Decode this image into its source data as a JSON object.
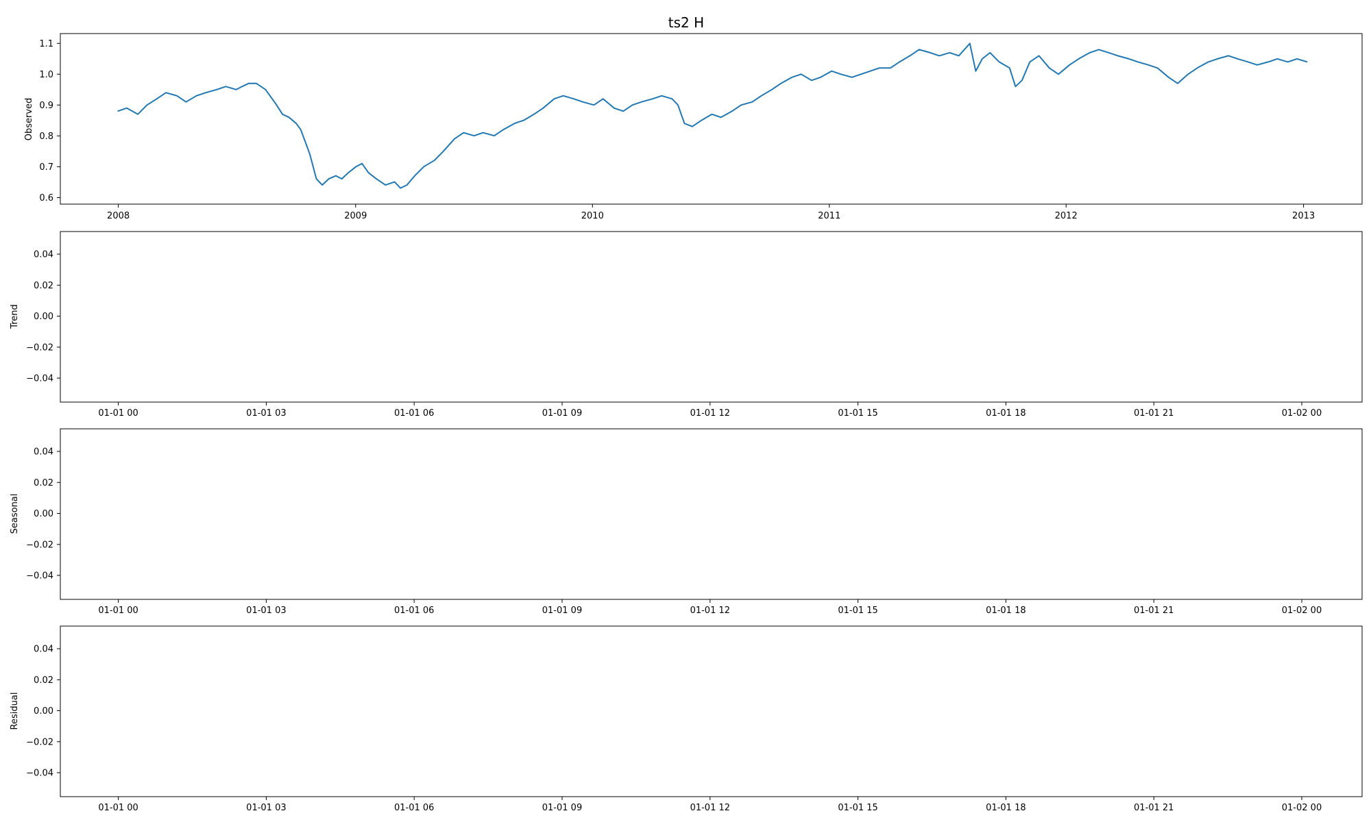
{
  "chart_data": [
    {
      "type": "line",
      "title": "ts2 H",
      "ylabel": "Observed",
      "xlabel": "",
      "grid": false,
      "color": "#1f77b4",
      "x_ticks": [
        "2008",
        "2009",
        "2010",
        "2011",
        "2012",
        "2013"
      ],
      "y_ticks": [
        "0.6",
        "0.7",
        "0.8",
        "0.9",
        "1.0",
        "1.1"
      ],
      "xlim": [
        "2007-10-05",
        "2013-03-25"
      ],
      "ylim": [
        0.578,
        1.132
      ],
      "series": [
        {
          "x": [
            "2008-01-01",
            "2008-01-15",
            "2008-02-01",
            "2008-02-15",
            "2008-03-01",
            "2008-03-15",
            "2008-04-01",
            "2008-04-15",
            "2008-05-01",
            "2008-05-15",
            "2008-06-01",
            "2008-06-15",
            "2008-07-01",
            "2008-07-10",
            "2008-07-20",
            "2008-08-01",
            "2008-08-15",
            "2008-09-01",
            "2008-09-10",
            "2008-09-20",
            "2008-10-01",
            "2008-10-08",
            "2008-10-15",
            "2008-10-22",
            "2008-11-01",
            "2008-11-10",
            "2008-11-20",
            "2008-12-01",
            "2008-12-10",
            "2008-12-20",
            "2009-01-01",
            "2009-01-10",
            "2009-01-20",
            "2009-02-01",
            "2009-02-15",
            "2009-03-01",
            "2009-03-10",
            "2009-03-20",
            "2009-04-01",
            "2009-04-15",
            "2009-05-01",
            "2009-05-15",
            "2009-06-01",
            "2009-06-15",
            "2009-07-01",
            "2009-07-15",
            "2009-08-01",
            "2009-08-15",
            "2009-09-01",
            "2009-09-15",
            "2009-10-01",
            "2009-10-15",
            "2009-11-01",
            "2009-11-15",
            "2009-12-01",
            "2009-12-15",
            "2010-01-01",
            "2010-01-15",
            "2010-02-01",
            "2010-02-15",
            "2010-03-01",
            "2010-03-15",
            "2010-04-01",
            "2010-04-15",
            "2010-05-01",
            "2010-05-10",
            "2010-05-20",
            "2010-06-01",
            "2010-06-15",
            "2010-07-01",
            "2010-07-15",
            "2010-08-01",
            "2010-08-15",
            "2010-09-01",
            "2010-09-15",
            "2010-10-01",
            "2010-10-15",
            "2010-11-01",
            "2010-11-15",
            "2010-12-01",
            "2010-12-15",
            "2011-01-01",
            "2011-01-15",
            "2011-02-01",
            "2011-02-15",
            "2011-03-01",
            "2011-03-15",
            "2011-04-01",
            "2011-04-15",
            "2011-05-01",
            "2011-05-15",
            "2011-06-01",
            "2011-06-15",
            "2011-07-01",
            "2011-07-15",
            "2011-08-01",
            "2011-08-10",
            "2011-08-20",
            "2011-09-01",
            "2011-09-15",
            "2011-10-01",
            "2011-10-10",
            "2011-10-20",
            "2011-11-01",
            "2011-11-15",
            "2011-12-01",
            "2011-12-15",
            "2012-01-01",
            "2012-01-15",
            "2012-02-01",
            "2012-02-15",
            "2012-03-01",
            "2012-03-15",
            "2012-04-01",
            "2012-04-15",
            "2012-05-01",
            "2012-05-15",
            "2012-06-01",
            "2012-06-15",
            "2012-07-01",
            "2012-07-15",
            "2012-08-01",
            "2012-08-15",
            "2012-09-01",
            "2012-09-15",
            "2012-10-01",
            "2012-10-15",
            "2012-11-01",
            "2012-11-15",
            "2012-12-01",
            "2012-12-15",
            "2012-12-31"
          ],
          "y": [
            0.88,
            0.89,
            0.87,
            0.9,
            0.92,
            0.94,
            0.93,
            0.91,
            0.93,
            0.94,
            0.95,
            0.96,
            0.95,
            0.96,
            0.97,
            0.97,
            0.95,
            0.9,
            0.87,
            0.86,
            0.84,
            0.82,
            0.78,
            0.74,
            0.66,
            0.64,
            0.66,
            0.67,
            0.66,
            0.68,
            0.7,
            0.71,
            0.68,
            0.66,
            0.64,
            0.65,
            0.63,
            0.64,
            0.67,
            0.7,
            0.72,
            0.75,
            0.79,
            0.81,
            0.8,
            0.81,
            0.8,
            0.82,
            0.84,
            0.85,
            0.87,
            0.89,
            0.92,
            0.93,
            0.92,
            0.91,
            0.9,
            0.92,
            0.89,
            0.88,
            0.9,
            0.91,
            0.92,
            0.93,
            0.92,
            0.9,
            0.84,
            0.83,
            0.85,
            0.87,
            0.86,
            0.88,
            0.9,
            0.91,
            0.93,
            0.95,
            0.97,
            0.99,
            1.0,
            0.98,
            0.99,
            1.01,
            1.0,
            0.99,
            1.0,
            1.01,
            1.02,
            1.02,
            1.04,
            1.06,
            1.08,
            1.07,
            1.06,
            1.07,
            1.06,
            1.1,
            1.01,
            1.05,
            1.07,
            1.04,
            1.02,
            0.96,
            0.98,
            1.04,
            1.06,
            1.02,
            1.0,
            1.03,
            1.05,
            1.07,
            1.08,
            1.07,
            1.06,
            1.05,
            1.04,
            1.03,
            1.02,
            0.99,
            0.97,
            1.0,
            1.02,
            1.04,
            1.05,
            1.06,
            1.05,
            1.04,
            1.03,
            1.04,
            1.05,
            1.04,
            1.05,
            1.04
          ]
        }
      ]
    },
    {
      "type": "line",
      "ylabel": "Trend",
      "xlabel": "",
      "grid": false,
      "x_ticks": [
        "01-01 00",
        "01-01 03",
        "01-01 06",
        "01-01 09",
        "01-01 12",
        "01-01 15",
        "01-01 18",
        "01-01 21",
        "01-02 00"
      ],
      "y_ticks": [
        "0.04",
        "0.02",
        "0.00",
        "−0.02",
        "−0.04"
      ],
      "ylim": [
        -0.055,
        0.055
      ],
      "series": []
    },
    {
      "type": "line",
      "ylabel": "Seasonal",
      "xlabel": "",
      "grid": false,
      "x_ticks": [
        "01-01 00",
        "01-01 03",
        "01-01 06",
        "01-01 09",
        "01-01 12",
        "01-01 15",
        "01-01 18",
        "01-01 21",
        "01-02 00"
      ],
      "y_ticks": [
        "0.04",
        "0.02",
        "0.00",
        "−0.02",
        "−0.04"
      ],
      "ylim": [
        -0.055,
        0.055
      ],
      "series": []
    },
    {
      "type": "line",
      "ylabel": "Residual",
      "xlabel": "",
      "grid": false,
      "x_ticks": [
        "01-01 00",
        "01-01 03",
        "01-01 06",
        "01-01 09",
        "01-01 12",
        "01-01 15",
        "01-01 18",
        "01-01 21",
        "01-02 00"
      ],
      "y_ticks": [
        "0.04",
        "0.02",
        "0.00",
        "−0.02",
        "−0.04"
      ],
      "ylim": [
        -0.055,
        0.055
      ],
      "series": []
    }
  ]
}
